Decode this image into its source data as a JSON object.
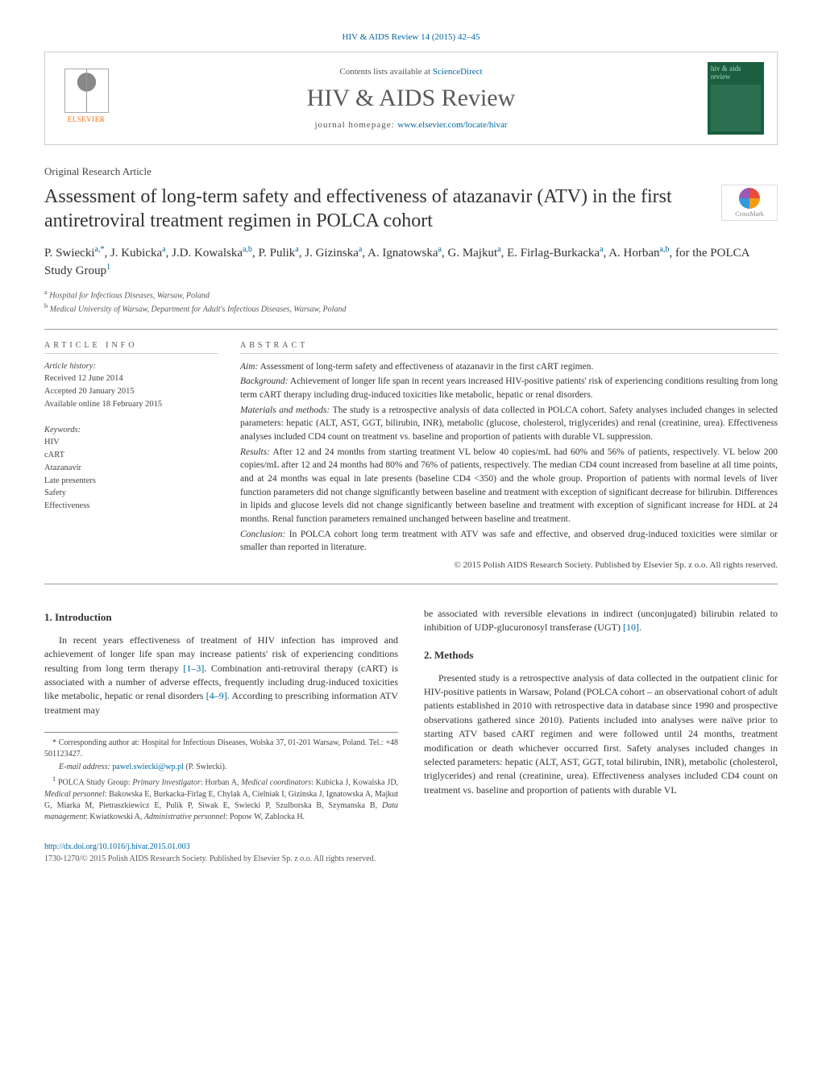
{
  "page": {
    "top_citation": "HIV & AIDS Review 14 (2015) 42–45",
    "background_color": "#ffffff",
    "text_color": "#333333",
    "link_color": "#0066a1"
  },
  "header": {
    "elsevier_label": "ELSEVIER",
    "contents_prefix": "Contents lists available at ",
    "contents_link": "ScienceDirect",
    "journal_name": "HIV & AIDS Review",
    "homepage_prefix": "journal homepage: ",
    "homepage_url": "www.elsevier.com/locate/hivar",
    "cover_title": "hiv & aids review"
  },
  "article": {
    "type": "Original Research Article",
    "title": "Assessment of long-term safety and effectiveness of atazanavir (ATV) in the first antiretroviral treatment regimen in POLCA cohort",
    "crossmark": "CrossMark",
    "authors_html": "P. Swiecki<sup>a,*</sup>, J. Kubicka<sup>a</sup>, J.D. Kowalska<sup>a,b</sup>, P. Pulik<sup>a</sup>, J. Gizinska<sup>a</sup>, A. Ignatowska<sup>a</sup>, G. Majkut<sup>a</sup>, E. Firlag-Burkacka<sup>a</sup>, A. Horban<sup>a,b</sup>, for the POLCA Study Group<sup>1</sup>",
    "affiliations": [
      {
        "marker": "a",
        "text": "Hospital for Infectious Diseases, Warsaw, Poland"
      },
      {
        "marker": "b",
        "text": "Medical University of Warsaw, Department for Adult's Infectious Diseases, Warsaw, Poland"
      }
    ]
  },
  "info": {
    "heading": "ARTICLE INFO",
    "history_label": "Article history:",
    "received": "Received 12 June 2014",
    "accepted": "Accepted 20 January 2015",
    "available": "Available online 18 February 2015",
    "keywords_label": "Keywords:",
    "keywords": [
      "HIV",
      "cART",
      "Atazanavir",
      "Late presenters",
      "Safety",
      "Effectiveness"
    ]
  },
  "abstract": {
    "heading": "ABSTRACT",
    "aim_label": "Aim:",
    "aim": "Assessment of long-term safety and effectiveness of atazanavir in the first cART regimen.",
    "background_label": "Background:",
    "background": "Achievement of longer life span in recent years increased HIV-positive patients' risk of experiencing conditions resulting from long term cART therapy including drug-induced toxicities like metabolic, hepatic or renal disorders.",
    "methods_label": "Materials and methods:",
    "methods": "The study is a retrospective analysis of data collected in POLCA cohort. Safety analyses included changes in selected parameters: hepatic (ALT, AST, GGT, bilirubin, INR), metabolic (glucose, cholesterol, triglycerides) and renal (creatinine, urea). Effectiveness analyses included CD4 count on treatment vs. baseline and proportion of patients with durable VL suppression.",
    "results_label": "Results:",
    "results": "After 12 and 24 months from starting treatment VL below 40 copies/mL had 60% and 56% of patients, respectively. VL below 200 copies/mL after 12 and 24 months had 80% and 76% of patients, respectively. The median CD4 count increased from baseline at all time points, and at 24 months was equal in late presents (baseline CD4 <350) and the whole group. Proportion of patients with normal levels of liver function parameters did not change significantly between baseline and treatment with exception of significant decrease for bilirubin. Differences in lipids and glucose levels did not change significantly between baseline and treatment with exception of significant increase for HDL at 24 months. Renal function parameters remained unchanged between baseline and treatment.",
    "conclusion_label": "Conclusion:",
    "conclusion": "In POLCA cohort long term treatment with ATV was safe and effective, and observed drug-induced toxicities were similar or smaller than reported in literature.",
    "copyright": "© 2015 Polish AIDS Research Society. Published by Elsevier Sp. z o.o. All rights reserved."
  },
  "body": {
    "intro_heading": "1. Introduction",
    "intro_p1": "In recent years effectiveness of treatment of HIV infection has improved and achievement of longer life span may increase patients' risk of experiencing conditions resulting from long term therapy ",
    "intro_ref1": "[1–3]",
    "intro_p1b": ". Combination anti-retroviral therapy (cART) is associated with a number of adverse effects, frequently including drug-induced toxicities like metabolic, hepatic or renal disorders ",
    "intro_ref2": "[4–9]",
    "intro_p1c": ". According to prescribing information ATV treatment may",
    "col2_cont": "be associated with reversible elevations in indirect (unconjugated) bilirubin related to inhibition of UDP-glucuronosyl transferase (UGT) ",
    "col2_ref": "[10]",
    "col2_cont_end": ".",
    "methods_heading": "2. Methods",
    "methods_p1": "Presented study is a retrospective analysis of data collected in the outpatient clinic for HIV-positive patients in Warsaw, Poland (POLCA cohort – an observational cohort of adult patients established in 2010 with retrospective data in database since 1990 and prospective observations gathered since 2010). Patients included into analyses were naïve prior to starting ATV based cART regimen and were followed until 24 months, treatment modification or death whichever occurred first. Safety analyses included changes in selected parameters: hepatic (ALT, AST, GGT, total bilirubin, INR), metabolic (cholesterol, triglycerides) and renal (creatinine, urea). Effectiveness analyses included CD4 count on treatment vs. baseline and proportion of patients with durable VL"
  },
  "footnotes": {
    "corr_marker": "*",
    "corr": "Corresponding author at: Hospital for Infectious Diseases, Wolska 37, 01-201 Warsaw, Poland. Tel.: +48 501123427.",
    "email_label": "E-mail address:",
    "email": "pawel.swiecki@wp.pl",
    "email_author": "(P. Swiecki).",
    "group_marker": "1",
    "group": "POLCA Study Group: Primary Investigator: Horban A, Medical coordinators: Kubicka J, Kowalska JD, Medical personnel: Bakowska E, Burkacka-Firlag E, Chylak A, Cielniak I, Gizinska J, Ignatowska A, Majkut G, Miarka M, Pietraszkiewicz E, Pulik P, Siwak E, Swiecki P, Szulborska B, Szymanska B, Data management: Kwiatkowski A, Administrative personnel: Popow W, Zablocka H."
  },
  "footer": {
    "doi": "http://dx.doi.org/10.1016/j.hivar.2015.01.003",
    "issn_line": "1730-1270/© 2015 Polish AIDS Research Society. Published by Elsevier Sp. z o.o. All rights reserved."
  }
}
